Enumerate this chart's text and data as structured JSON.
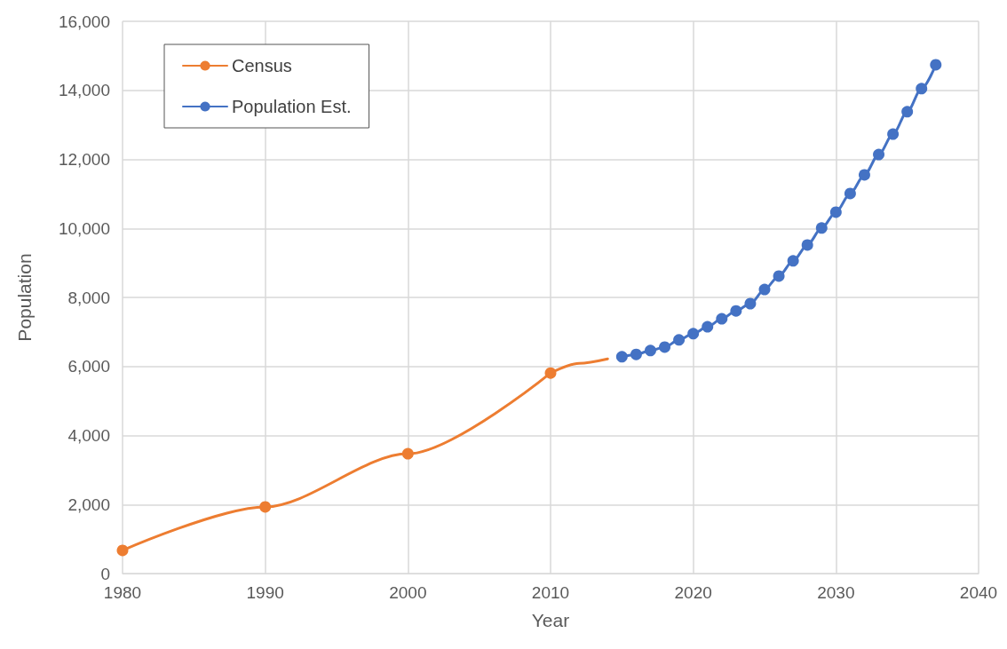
{
  "chart_data": {
    "type": "line",
    "xlabel": "Year",
    "ylabel": "Population",
    "xlim": [
      1980,
      2040
    ],
    "xticks": [
      1980,
      1990,
      2000,
      2010,
      2020,
      2030,
      2040
    ],
    "ylim": [
      0,
      16000
    ],
    "yticks": [
      0,
      {
        "value": 2000,
        "label": "2,000"
      },
      {
        "value": 4000,
        "label": "4,000"
      },
      {
        "value": 6000,
        "label": "6,000"
      },
      {
        "value": 8000,
        "label": "8,000"
      },
      {
        "value": 10000,
        "label": "10,000"
      },
      {
        "value": 12000,
        "label": "12,000"
      },
      {
        "value": 14000,
        "label": "14,000"
      },
      {
        "value": 16000,
        "label": "16,000"
      }
    ],
    "grid": true,
    "legend": "top left",
    "marker": "circle",
    "line_style": "solid",
    "series": [
      {
        "name": "Census",
        "color": "#ed7d31",
        "x": [
          1980,
          1990,
          2000,
          2010
        ],
        "values": [
          670,
          1930,
          3470,
          5810
        ]
      },
      {
        "color": "#ed7d31",
        "marker": "none",
        "x": [
          2010,
          2012,
          2014
        ],
        "values": [
          5810,
          6090,
          6220
        ]
      },
      {
        "name": "Population Est.",
        "color": "#4472c4",
        "x": [
          2015,
          2016,
          2017,
          2018,
          2019,
          2020,
          2021,
          2022,
          2023,
          2024,
          2025,
          2026,
          2027,
          2028,
          2029,
          2030,
          2031,
          2032,
          2033,
          2034,
          2035,
          2036,
          2037
        ],
        "values": [
          6280,
          6350,
          6460,
          6560,
          6770,
          6950,
          7150,
          7380,
          7610,
          7820,
          8230,
          8620,
          9060,
          9520,
          10010,
          10470,
          11010,
          11550,
          12140,
          12730,
          13380,
          14050,
          14740
        ]
      }
    ]
  }
}
